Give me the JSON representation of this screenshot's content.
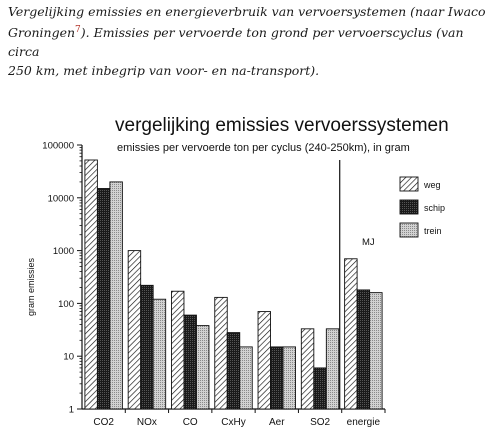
{
  "caption": {
    "line1": "Vergelijking emissies en energieverbruik van vervoersystemen (naar Iwaco",
    "line2_a": "Groningen",
    "line2_sup": "7",
    "line2_b": "). Emissies per vervoerde ton grond per vervoerscyclus (van circa",
    "line3": "250 km, met inbegrip van voor- en na-transport)."
  },
  "colors": {
    "ink": "#111111",
    "weg": "hatched",
    "schip": "#222222",
    "trein": "#bdbdbd"
  },
  "chart_data": {
    "type": "bar",
    "title": "vergelijking emissies vervoerssystemen",
    "subtitle": "emissies per vervoerde ton per cyclus (240-250km), in gram",
    "ylabel": "gram emissies",
    "yscale": "log",
    "ylim": [
      1,
      100000
    ],
    "yticks": [
      "1",
      "10",
      "100",
      "1000",
      "10000",
      "100000"
    ],
    "categories": [
      "CO2",
      "NOx",
      "CO",
      "CxHy",
      "Aer",
      "SO2",
      "energie"
    ],
    "energy_unit": "MJ",
    "series": [
      {
        "name": "weg",
        "values": [
          52000,
          1000,
          170,
          130,
          70,
          33,
          700
        ]
      },
      {
        "name": "schip",
        "values": [
          15000,
          220,
          60,
          28,
          15,
          6,
          180
        ]
      },
      {
        "name": "trein",
        "values": [
          20000,
          120,
          38,
          15,
          15,
          33,
          160
        ]
      }
    ],
    "legend_position": "right"
  }
}
